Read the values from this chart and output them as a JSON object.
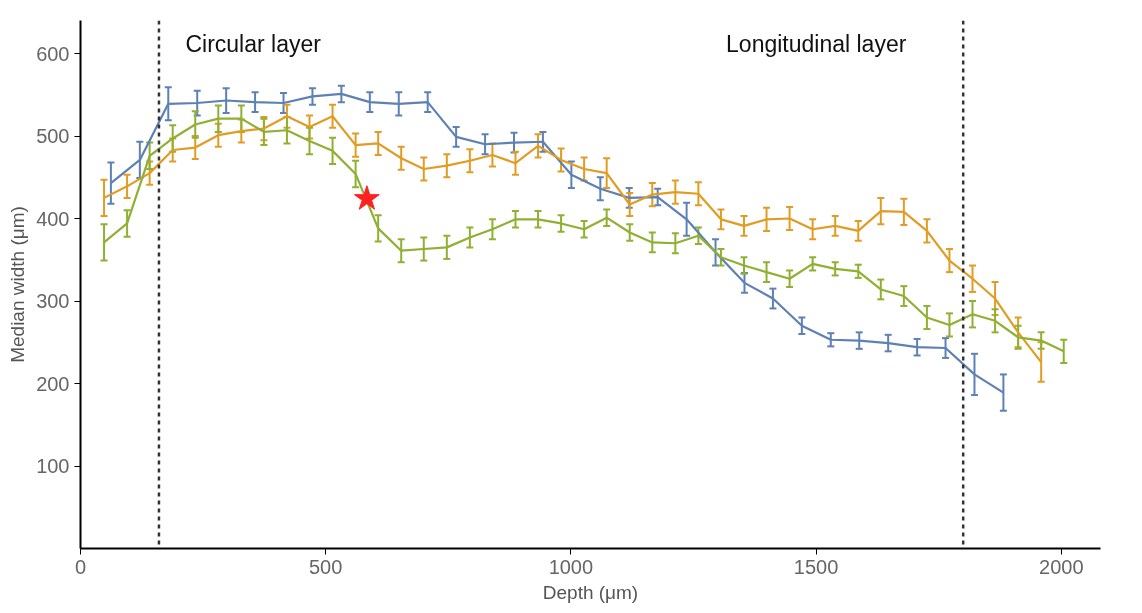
{
  "chart_data": {
    "type": "line",
    "xlabel": "Depth (μm)",
    "ylabel": "Median width (μm)",
    "xlim": [
      0,
      2080
    ],
    "ylim": [
      0,
      640
    ],
    "xticks": [
      0,
      500,
      1000,
      1500,
      2000
    ],
    "yticks": [
      100,
      200,
      300,
      400,
      500,
      600
    ],
    "grid": false,
    "annotations": [
      "Circular layer",
      "Longitudinal layer"
    ],
    "ref_lines": [
      {
        "axis": "x",
        "value": 160,
        "label": null,
        "color": "#333333",
        "line_style": "dashed"
      },
      {
        "axis": "x",
        "value": 1800,
        "label": null,
        "color": "#333333",
        "line_style": "dashed"
      }
    ],
    "series": [
      {
        "color": "#5e81b5",
        "x": [
          62,
          121,
          179,
          238,
          297,
          356,
          414,
          473,
          532,
          590,
          649,
          708,
          766,
          825,
          884,
          943,
          1001,
          1060,
          1119,
          1177,
          1236,
          1295,
          1354,
          1412,
          1471,
          1530,
          1588,
          1647,
          1706,
          1764,
          1823,
          1882
        ],
        "values": [
          443,
          471,
          539,
          540,
          543,
          541,
          540,
          548,
          551,
          541,
          539,
          541,
          499,
          490,
          492,
          493,
          453,
          436,
          425,
          426,
          399,
          359,
          322,
          303,
          270,
          253,
          252,
          249,
          244,
          243,
          211,
          189
        ],
        "errors": [
          25,
          22,
          20,
          15,
          15,
          12,
          12,
          10,
          10,
          12,
          14,
          12,
          12,
          12,
          12,
          12,
          16,
          14,
          12,
          10,
          20,
          16,
          12,
          12,
          10,
          8,
          10,
          10,
          10,
          12,
          25,
          22
        ]
      },
      {
        "color": "#e19c24",
        "x": [
          48,
          95,
          141,
          188,
          234,
          281,
          328,
          374,
          421,
          467,
          514,
          561,
          607,
          654,
          700,
          747,
          794,
          840,
          887,
          933,
          980,
          1027,
          1073,
          1120,
          1166,
          1213,
          1260,
          1306,
          1353,
          1399,
          1446,
          1493,
          1539,
          1586,
          1632,
          1679,
          1726,
          1772,
          1819,
          1865,
          1912,
          1959
        ],
        "values": [
          425,
          439,
          455,
          483,
          486,
          501,
          506,
          509,
          524,
          511,
          524,
          489,
          491,
          473,
          460,
          464,
          470,
          477,
          467,
          488,
          471,
          460,
          455,
          417,
          429,
          432,
          430,
          399,
          391,
          399,
          400,
          387,
          391,
          385,
          409,
          408,
          385,
          349,
          327,
          303,
          262,
          226
        ],
        "errors": [
          22,
          14,
          14,
          14,
          14,
          14,
          14,
          14,
          14,
          14,
          14,
          14,
          14,
          14,
          14,
          14,
          14,
          14,
          14,
          14,
          14,
          14,
          18,
          14,
          14,
          14,
          14,
          12,
          12,
          14,
          14,
          12,
          12,
          12,
          16,
          16,
          14,
          14,
          16,
          20,
          18,
          24
        ]
      },
      {
        "color": "#8fb032",
        "x": [
          48,
          95,
          141,
          188,
          234,
          281,
          328,
          374,
          421,
          467,
          514,
          561,
          607,
          654,
          700,
          747,
          794,
          840,
          887,
          933,
          980,
          1027,
          1073,
          1120,
          1166,
          1213,
          1260,
          1306,
          1353,
          1399,
          1446,
          1493,
          1539,
          1586,
          1632,
          1679,
          1726,
          1772,
          1819,
          1865,
          1912,
          1959,
          2005
        ],
        "values": [
          371,
          394,
          476,
          497,
          514,
          521,
          521,
          505,
          507,
          494,
          482,
          454,
          388,
          361,
          363,
          365,
          377,
          387,
          399,
          399,
          394,
          387,
          401,
          383,
          371,
          370,
          379,
          353,
          343,
          335,
          327,
          345,
          339,
          336,
          314,
          306,
          280,
          271,
          284,
          276,
          256,
          252,
          239
        ],
        "errors": [
          22,
          16,
          16,
          16,
          16,
          16,
          16,
          16,
          16,
          16,
          16,
          16,
          16,
          14,
          14,
          14,
          12,
          12,
          10,
          10,
          10,
          10,
          10,
          10,
          12,
          12,
          10,
          10,
          10,
          12,
          10,
          8,
          8,
          8,
          12,
          12,
          14,
          14,
          16,
          14,
          14,
          10,
          14
        ]
      },
      {
        "type": "scatter",
        "marker": "star",
        "color": "#ff2020",
        "x": [
          584
        ],
        "values": [
          424
        ]
      }
    ]
  }
}
